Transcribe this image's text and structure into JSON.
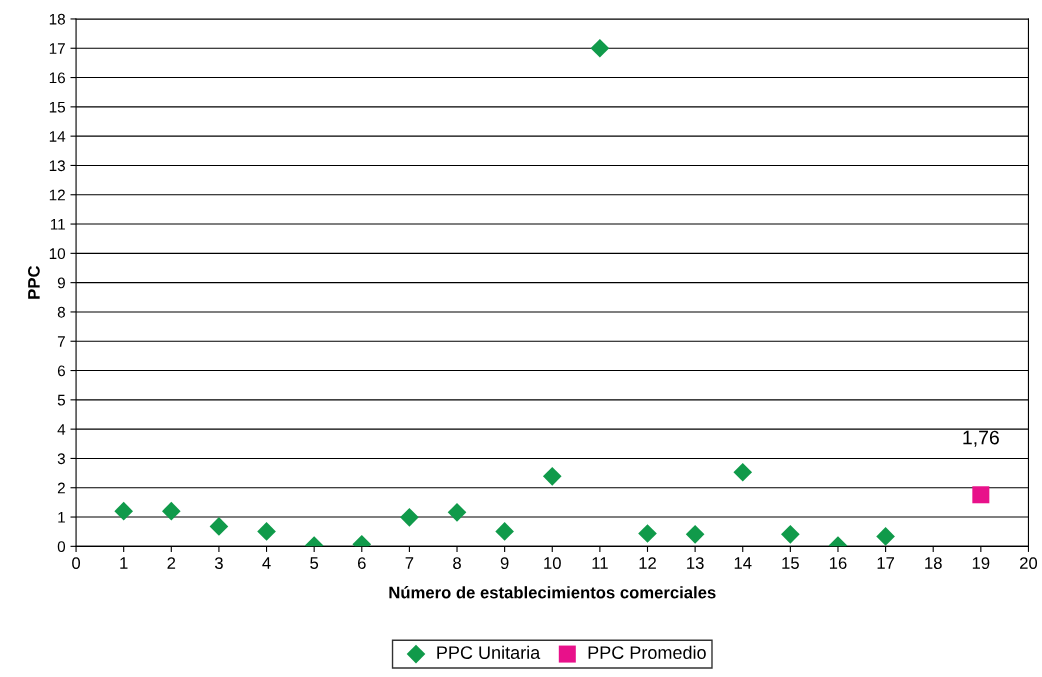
{
  "chart_data": {
    "type": "scatter",
    "xlabel": "Número de establecimientos comerciales",
    "ylabel": "PPC",
    "xlim": [
      0,
      20
    ],
    "xticks": [
      0,
      1,
      2,
      3,
      4,
      5,
      6,
      7,
      8,
      9,
      10,
      11,
      12,
      13,
      14,
      15,
      16,
      17,
      18,
      19,
      20
    ],
    "ylim": [
      0,
      18
    ],
    "yticks": [
      0,
      1,
      2,
      3,
      4,
      5,
      6,
      7,
      8,
      9,
      10,
      11,
      12,
      13,
      14,
      15,
      16,
      17,
      18
    ],
    "grid": "y",
    "legend": "bottom",
    "series": [
      {
        "name": "PPC Unitaria",
        "color": "#109a4a",
        "marker": "diamond",
        "x": [
          1,
          2,
          3,
          4,
          5,
          6,
          7,
          8,
          9,
          10,
          11,
          12,
          13,
          14,
          15,
          16,
          17
        ],
        "values": [
          1.2,
          1.2,
          0.68,
          0.51,
          0.03,
          0.07,
          0.99,
          1.16,
          0.51,
          2.39,
          17.0,
          0.44,
          0.41,
          2.53,
          0.41,
          0.03,
          0.34
        ]
      },
      {
        "name": "PPC Promedio",
        "color": "#e8118a",
        "marker": "square",
        "x": [
          19
        ],
        "values": [
          1.76
        ],
        "value_labels": [
          "1,76"
        ]
      }
    ]
  }
}
